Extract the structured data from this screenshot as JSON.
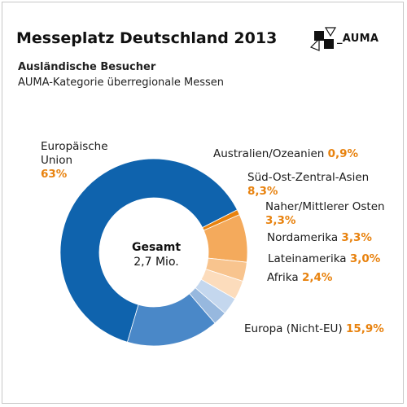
{
  "header": {
    "title": "Messeplatz Deutschland 2013",
    "subtitle": "Ausländische Besucher",
    "subtitle2": "AUMA-Kategorie überregionale Messen",
    "logo_text": "_AUMA"
  },
  "center": {
    "label": "Gesamt",
    "value": "2,7 Mio."
  },
  "chart_data": {
    "type": "pie",
    "title": "Messeplatz Deutschland 2013",
    "subtitle": "Ausländische Besucher",
    "total": "2,7 Mio.",
    "slices": [
      {
        "name": "Europäische Union",
        "label_lines": [
          "Europäische",
          "Union"
        ],
        "value": 63.0,
        "display": "63%",
        "color": "#0f63ad"
      },
      {
        "name": "Australien/Ozeanien",
        "label_lines": [
          "Australien/Ozeanien"
        ],
        "value": 0.9,
        "display": "0,9%",
        "color": "#e8820e"
      },
      {
        "name": "Süd-Ost-Zentral-Asien",
        "label_lines": [
          "Süd-Ost-Zentral-Asien"
        ],
        "value": 8.3,
        "display": "8,3%",
        "color": "#f4aa5c"
      },
      {
        "name": "Naher/Mittlerer Osten",
        "label_lines": [
          "Naher/Mittlerer Osten"
        ],
        "value": 3.3,
        "display": "3,3%",
        "color": "#f8c48e"
      },
      {
        "name": "Nordamerika",
        "label_lines": [
          "Nordamerika"
        ],
        "value": 3.3,
        "display": "3,3%",
        "color": "#fcdcbc"
      },
      {
        "name": "Lateinamerika",
        "label_lines": [
          "Lateinamerika"
        ],
        "value": 3.0,
        "display": "3,0%",
        "color": "#c4d7ee"
      },
      {
        "name": "Afrika",
        "label_lines": [
          "Afrika"
        ],
        "value": 2.4,
        "display": "2,4%",
        "color": "#97b8de"
      },
      {
        "name": "Europa (Nicht-EU)",
        "label_lines": [
          "Europa (Nicht-EU)"
        ],
        "value": 15.9,
        "display": "15,9%",
        "color": "#4a88c8"
      }
    ]
  }
}
